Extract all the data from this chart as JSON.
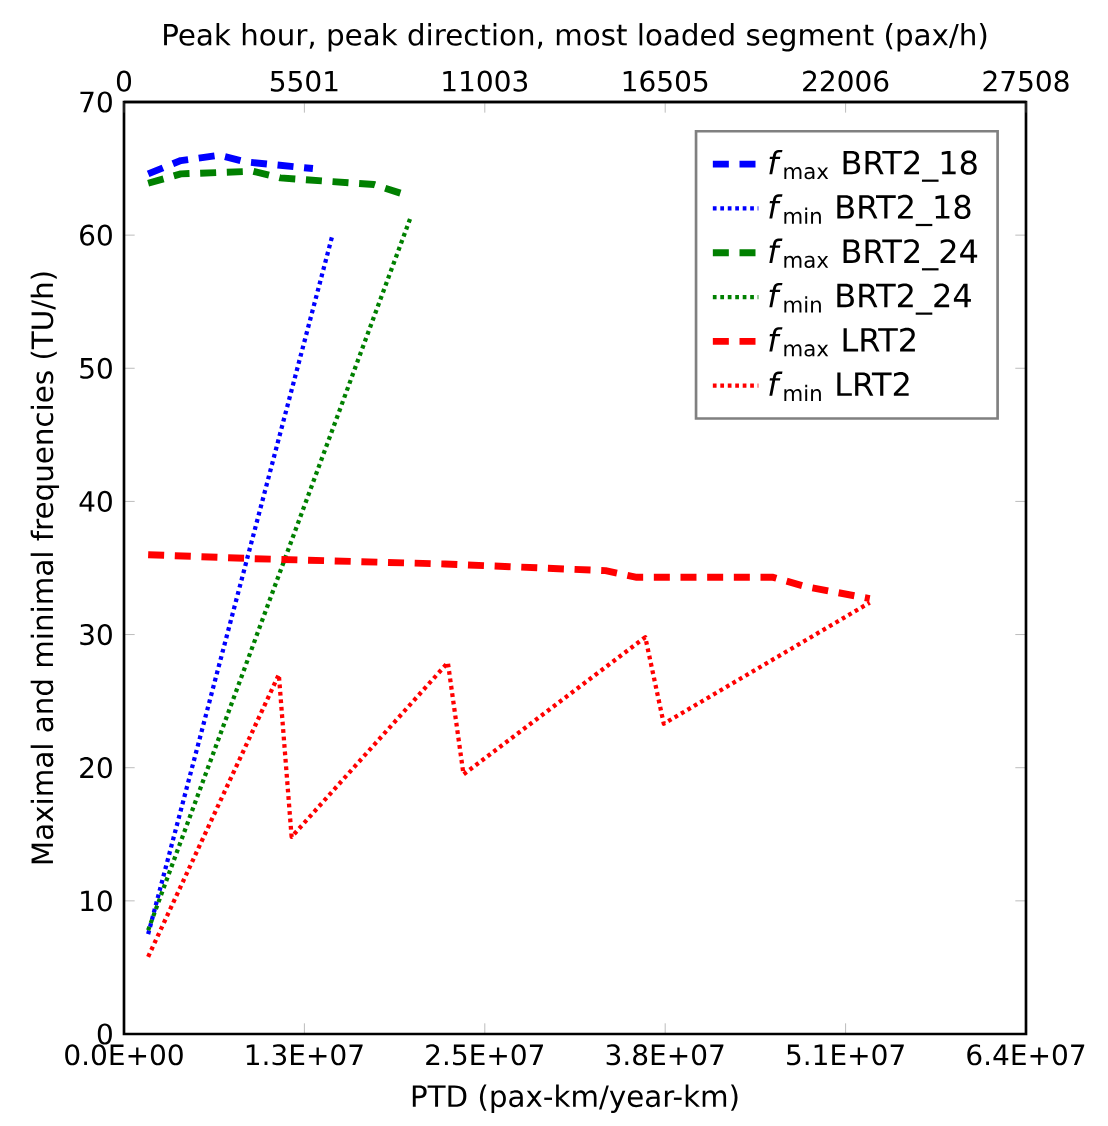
{
  "chart_data": {
    "type": "line",
    "xlabel": "PTD (pax-km/year-km)",
    "ylabel": "Maximal and minimal frequencies (TU/h)",
    "x2label": "Peak hour, peak direction, most loaded segment (pax/h)",
    "xlim": [
      0,
      63500000
    ],
    "xticks": [
      {
        "value": 0,
        "label": "0.0E+00"
      },
      {
        "value": 12700000,
        "label": "1.3E+07"
      },
      {
        "value": 25400000,
        "label": "2.5E+07"
      },
      {
        "value": 38100000,
        "label": "3.8E+07"
      },
      {
        "value": 50800000,
        "label": "5.1E+07"
      },
      {
        "value": 63500000,
        "label": "6.4E+07"
      }
    ],
    "x2lim": [
      0,
      27508
    ],
    "x2ticks": [
      0,
      5501,
      11003,
      16505,
      22006,
      27508
    ],
    "ylim": [
      0,
      70
    ],
    "yticks": [
      0,
      10,
      20,
      30,
      40,
      50,
      60,
      70
    ],
    "legend": "top right",
    "series": [
      {
        "name": "*f*$_{max}$ BRT2_18",
        "color": "#0000ff",
        "line_style": "dashed",
        "x": [
          1700000,
          4000000,
          6700000,
          8600000,
          13300000
        ],
        "values": [
          64.6,
          65.6,
          66.0,
          65.5,
          65.0
        ]
      },
      {
        "name": "*f*$_{min}$ BRT2_18",
        "color": "#0000ff",
        "line_style": "dotted",
        "x": [
          1700000,
          14700000
        ],
        "values": [
          7.5,
          60.1
        ]
      },
      {
        "name": "*f*$_{max}$ BRT2_24",
        "color": "#008000",
        "line_style": "dashed",
        "x": [
          1700000,
          4000000,
          9100000,
          11000000,
          17600000,
          19900000
        ],
        "values": [
          63.9,
          64.6,
          64.8,
          64.3,
          63.8,
          63.0
        ]
      },
      {
        "name": "*f*$_{min}$ BRT2_24",
        "color": "#008000",
        "line_style": "dotted",
        "x": [
          1700000,
          20200000
        ],
        "values": [
          7.8,
          61.4
        ]
      },
      {
        "name": "*f*$_{max}$ LRT2",
        "color": "#ff0000",
        "line_style": "dashed",
        "x": [
          1700000,
          9100000,
          22600000,
          33900000,
          36100000,
          45700000,
          48000000,
          52500000
        ],
        "values": [
          36.0,
          35.7,
          35.3,
          34.8,
          34.3,
          34.3,
          33.6,
          32.7
        ]
      },
      {
        "name": "*f*$_{min}$ LRT2",
        "color": "#ff0000",
        "line_style": "dotted",
        "x": [
          1700000,
          10900000,
          11800000,
          22800000,
          23900000,
          36700000,
          38000000,
          52500000
        ],
        "values": [
          5.8,
          27.0,
          14.8,
          27.9,
          19.5,
          29.8,
          23.3,
          32.4
        ]
      }
    ]
  }
}
